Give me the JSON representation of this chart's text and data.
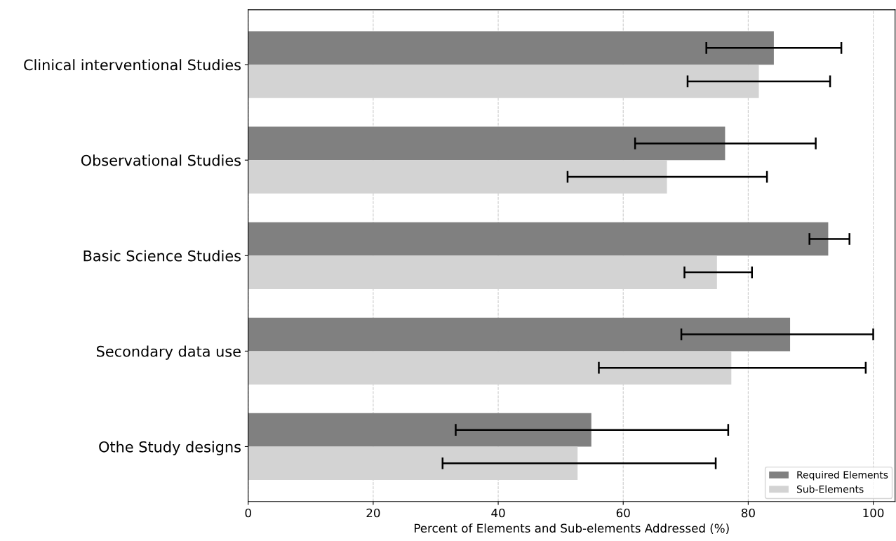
{
  "chart_data": {
    "type": "bar",
    "orientation": "horizontal",
    "xlabel": "Percent of Elements and Sub-elements Addressed (%)",
    "categories": [
      "Clinical interventional Studies",
      "Observational Studies",
      "Basic Science Studies",
      "Secondary data use",
      "Othe Study designs"
    ],
    "series": [
      {
        "name": "Required Elements",
        "color": "#808080",
        "values": [
          84.1,
          76.3,
          92.8,
          86.7,
          54.9
        ],
        "errors": [
          [
            73.3,
            94.9
          ],
          [
            61.9,
            90.8
          ],
          [
            89.8,
            96.2
          ],
          [
            69.3,
            100.0
          ],
          [
            33.2,
            76.8
          ]
        ]
      },
      {
        "name": "Sub-Elements",
        "color": "#d3d3d3",
        "values": [
          81.7,
          67.0,
          75.0,
          77.3,
          52.7
        ],
        "errors": [
          [
            70.3,
            93.1
          ],
          [
            51.1,
            83.0
          ],
          [
            69.8,
            80.6
          ],
          [
            56.1,
            98.8
          ],
          [
            31.1,
            74.8
          ]
        ]
      }
    ],
    "xlim": [
      0,
      103.5
    ],
    "xticks": [
      0,
      20,
      40,
      60,
      80,
      100
    ],
    "grid": "x",
    "legend": "bottom right"
  }
}
